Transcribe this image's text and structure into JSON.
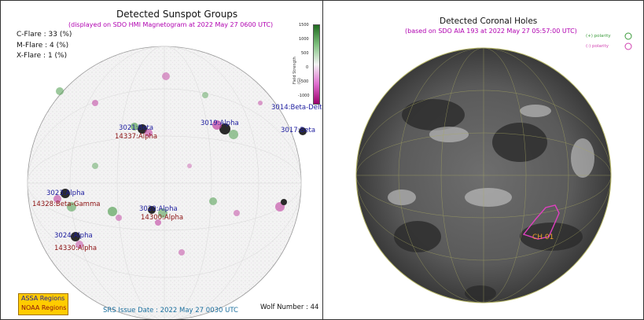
{
  "sunspot_panel": {
    "title": "Detected Sunspot Groups",
    "subtitle": "(displayed on SDO HMI Magnetogram at 2022 May 27 0600 UTC)",
    "flares": [
      {
        "label": "C-Flare : 33 (%)"
      },
      {
        "label": "M-Flare :  4 (%)"
      },
      {
        "label": "X-Flare :  1 (%)"
      }
    ],
    "colorbar": {
      "axis_label": "Field Strength (G)",
      "ticks": [
        "1500",
        "1000",
        "500",
        "0",
        "-500",
        "-1000"
      ],
      "colors": {
        "positive": "#1f6b1f",
        "negative": "#9b006b"
      }
    },
    "regions": [
      {
        "assa": "3014:Beta-Delta",
        "noaa": ""
      },
      {
        "assa": "3021:Beta",
        "noaa": "14337:Alpha"
      },
      {
        "assa": "3019:Alpha",
        "noaa": ""
      },
      {
        "assa": "3017:Beta",
        "noaa": ""
      },
      {
        "assa": "3023:Alpha",
        "noaa": "14328:Beta-Gamma"
      },
      {
        "assa": "3020:Alpha",
        "noaa": "14300:Alpha"
      },
      {
        "assa": "3024:Alpha",
        "noaa": "14330:Alpha"
      }
    ],
    "legend": {
      "assa": "ASSA Regions",
      "noaa": "NOAA Regions"
    },
    "srs_issue": "SRS Issue Date : 2022 May 27 0030 UTC",
    "wolf_number": "Wolf Number : 44"
  },
  "coronal_panel": {
    "title": "Detected Coronal Holes",
    "subtitle": "(based on SDO AIA 193 at 2022 May 27 05:57:00 UTC)",
    "legend": [
      {
        "label": "(+) polarity",
        "color": "#3a9a3a"
      },
      {
        "label": "(-) polarity",
        "color": "#d040b0"
      }
    ],
    "holes": [
      {
        "label": "CH 01"
      }
    ]
  }
}
